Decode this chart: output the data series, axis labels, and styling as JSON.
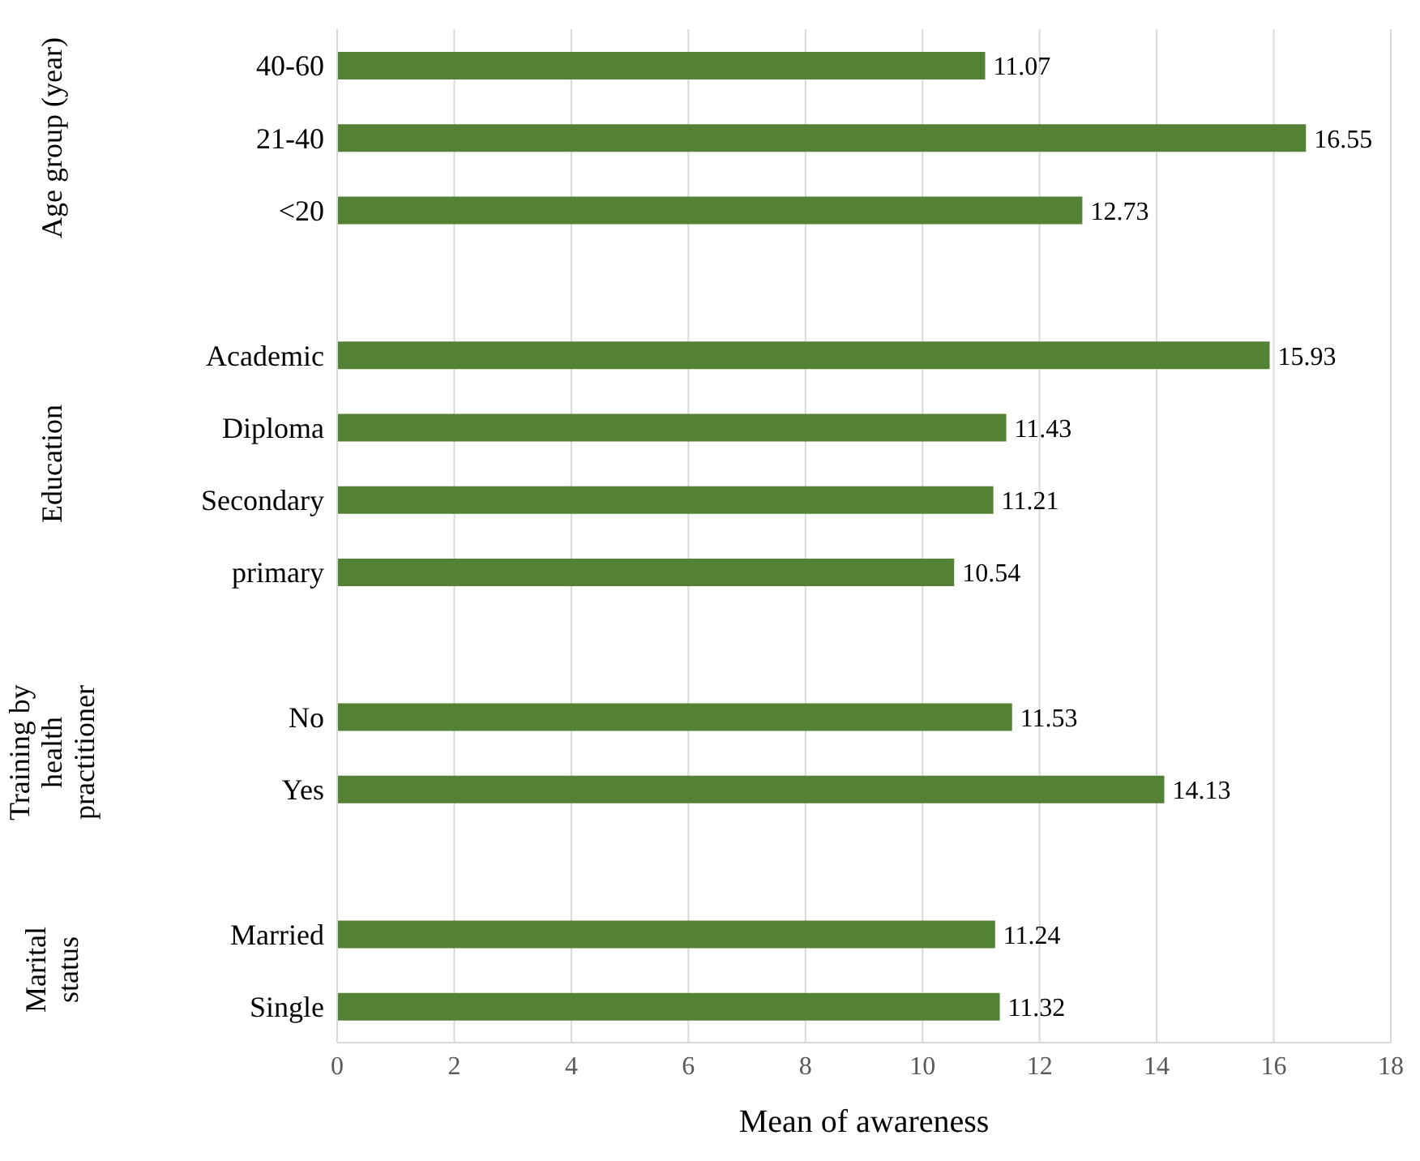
{
  "chart_data": {
    "type": "bar",
    "orientation": "horizontal",
    "xlabel": "Mean of awareness",
    "categories": [
      "40-60",
      "21-40",
      "<20",
      null,
      "Academic",
      "Diploma",
      "Secondary",
      "primary",
      null,
      "No",
      "Yes",
      null,
      "Married",
      "Single"
    ],
    "values": [
      11.07,
      16.55,
      12.73,
      null,
      15.93,
      11.43,
      11.21,
      10.54,
      null,
      11.53,
      14.13,
      null,
      11.24,
      11.32
    ],
    "color": "#548235",
    "xlim": [
      0,
      18
    ],
    "xticks": [
      0,
      2,
      4,
      6,
      8,
      10,
      12,
      14,
      16,
      18
    ],
    "grid": "x",
    "data_labels": true,
    "annotations": [
      "Age group (year)",
      "Education",
      "Training by health practitioner",
      "Marital status"
    ]
  }
}
